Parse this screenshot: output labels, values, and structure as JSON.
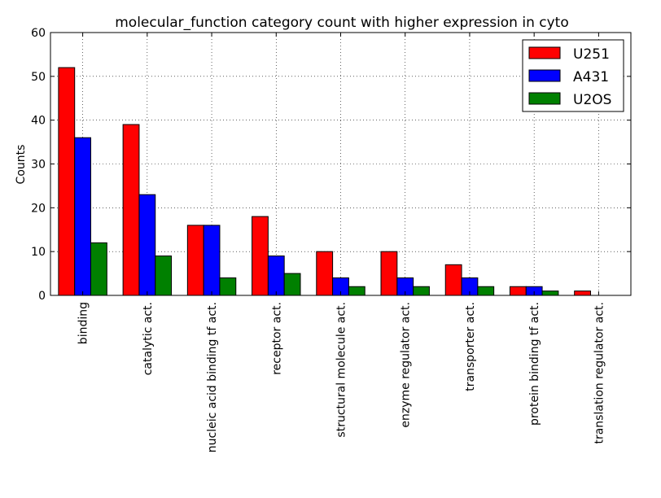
{
  "chart_data": {
    "type": "bar",
    "title": "molecular_function category count with higher expression in cyto",
    "xlabel": "",
    "ylabel": "Counts",
    "ylim": [
      0,
      60
    ],
    "yticks": [
      0,
      10,
      20,
      30,
      40,
      50,
      60
    ],
    "grid": true,
    "legend_position": "top-right",
    "categories": [
      "binding",
      "catalytic act.",
      "nucleic acid binding tf act.",
      "receptor act.",
      "structural molecule act.",
      "enzyme regulator act.",
      "transporter act.",
      "protein binding tf act.",
      "translation regulator act."
    ],
    "series": [
      {
        "name": "U251",
        "color": "#ff0000",
        "values": [
          52,
          39,
          16,
          18,
          10,
          10,
          7,
          2,
          1
        ]
      },
      {
        "name": "A431",
        "color": "#0000ff",
        "values": [
          36,
          23,
          16,
          9,
          4,
          4,
          4,
          2,
          0
        ]
      },
      {
        "name": "U2OS",
        "color": "#008000",
        "values": [
          12,
          9,
          4,
          5,
          2,
          2,
          2,
          1,
          0
        ]
      }
    ]
  }
}
